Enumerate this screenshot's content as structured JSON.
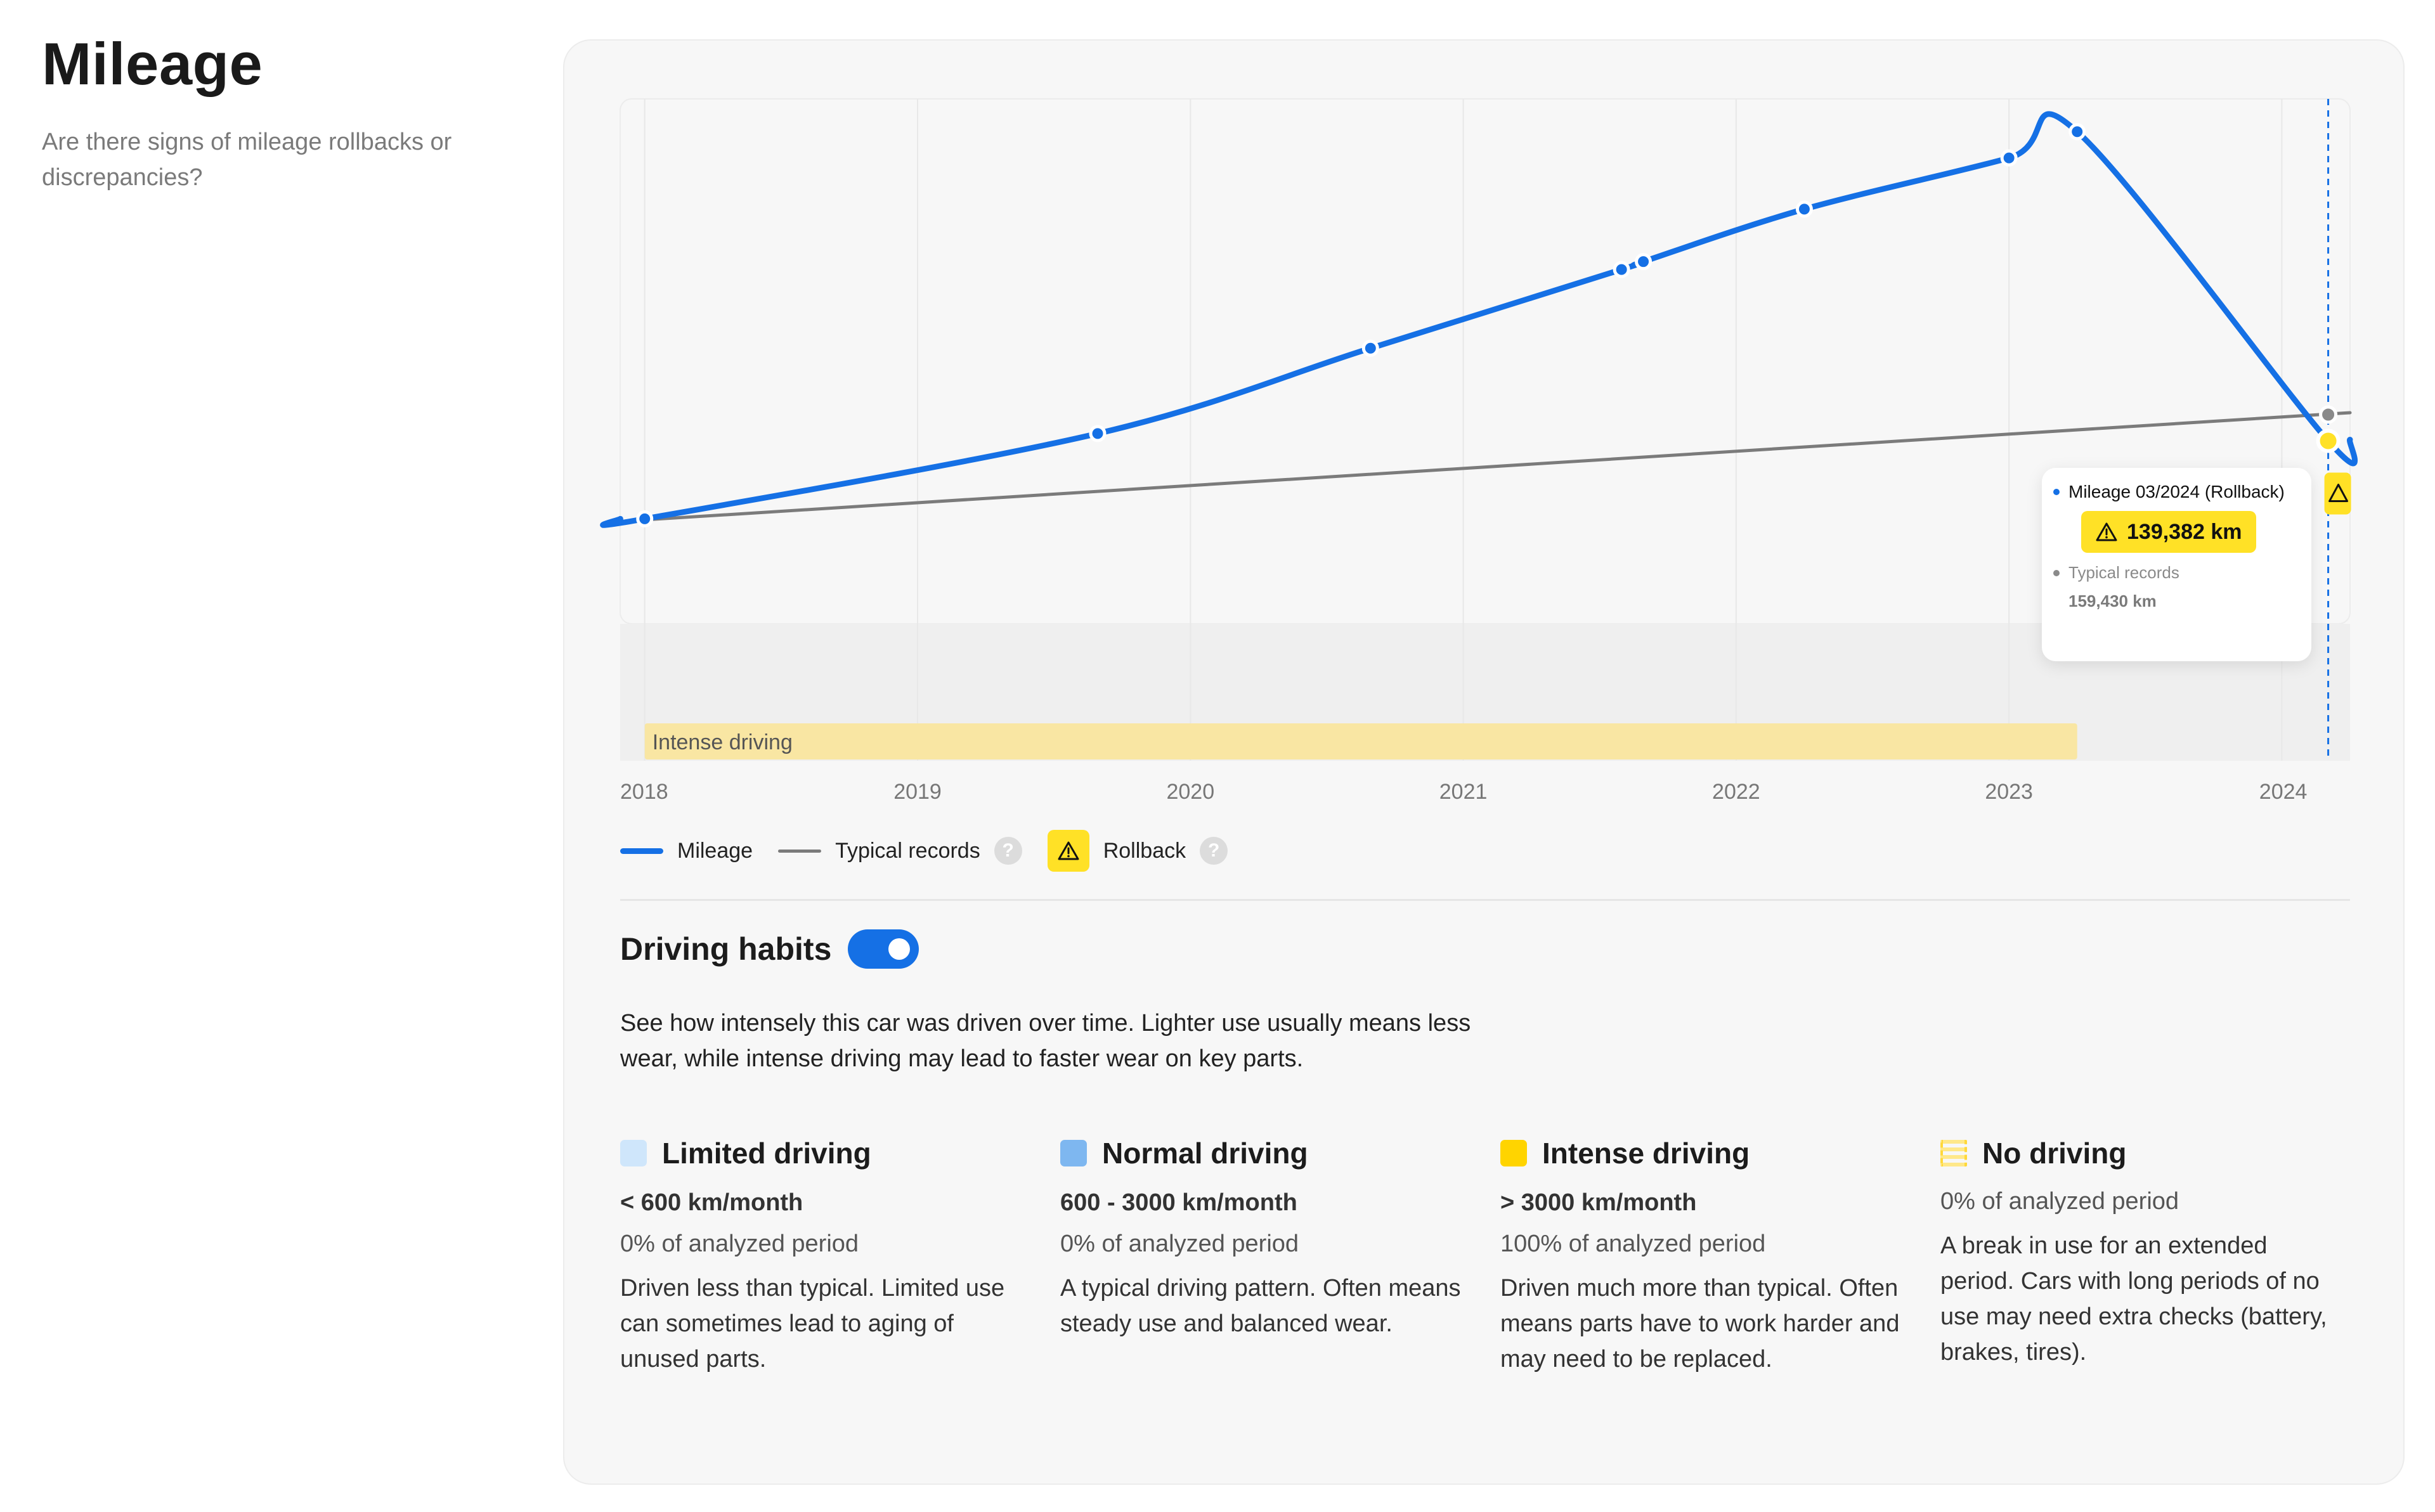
{
  "header": {
    "title": "Mileage",
    "subtitle": "Are there signs of mileage rollbacks or discrepancies?"
  },
  "colors": {
    "mileage": "#1570e5",
    "typical": "#7b7b7b",
    "rollback": "#ffe126",
    "intense_band": "#f9e6a3",
    "limited": "#cfe6fb",
    "normal": "#7eb7f0",
    "intense": "#ffd400"
  },
  "chart_data": {
    "type": "line",
    "title": "Mileage",
    "xlabel": "",
    "ylabel": "",
    "x_ticks": [
      "2018",
      "2019",
      "2020",
      "2021",
      "2022",
      "2023",
      "2024"
    ],
    "xlim": [
      2017.91,
      2024.25
    ],
    "ylim": [
      0,
      400000
    ],
    "grid": "vertical",
    "series": [
      {
        "name": "Mileage",
        "x": [
          2018.0,
          2019.66,
          2020.66,
          2021.58,
          2021.66,
          2022.25,
          2023.0,
          2023.25,
          2024.17
        ],
        "y": [
          80000,
          145000,
          210000,
          270000,
          276000,
          316000,
          355000,
          375000,
          139382
        ]
      },
      {
        "name": "Typical records",
        "x": [
          2018.0,
          2024.17
        ],
        "y": [
          80000,
          159430
        ]
      }
    ],
    "selected_x": 2024.17,
    "band": {
      "label": "Intense driving",
      "x_start": 2018.0,
      "x_end": 2023.25
    }
  },
  "tooltip": {
    "mileage_label": "Mileage 03/2024 (Rollback)",
    "mileage_value": "139,382 km",
    "typical_label": "Typical records",
    "typical_value": "159,430 km"
  },
  "legend": {
    "mileage": "Mileage",
    "typical": "Typical records",
    "rollback": "Rollback",
    "help": "?"
  },
  "driving": {
    "title": "Driving habits",
    "toggle_on": true,
    "description": "See how intensely this car was driven over time. Lighter use usually means less wear, while intense driving may lead to faster wear on key parts.",
    "categories": [
      {
        "name": "Limited driving",
        "range": "< 600 km/month",
        "share": "0% of analyzed period",
        "text": "Driven less than typical. Limited use can sometimes lead to aging of unused parts."
      },
      {
        "name": "Normal driving",
        "range": "600 - 3000 km/month",
        "share": "0% of analyzed period",
        "text": "A typical driving pattern. Often means steady use and balanced wear."
      },
      {
        "name": "Intense driving",
        "range": "> 3000 km/month",
        "share": "100% of analyzed period",
        "text": "Driven much more than typical. Often means parts have to work harder and may need to be replaced."
      },
      {
        "name": "No driving",
        "share": "0% of analyzed period",
        "text": "A break in use for an extended period. Cars with long periods of no use may need extra checks (battery, brakes, tires)."
      }
    ]
  }
}
